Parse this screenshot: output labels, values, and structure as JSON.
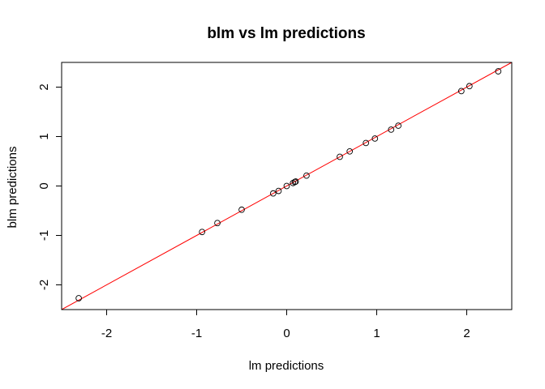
{
  "chart_data": {
    "type": "scatter",
    "title": "blm vs lm predictions",
    "xlabel": "lm predictions",
    "ylabel": "blm predictions",
    "xlim": [
      -2.5,
      2.5
    ],
    "ylim": [
      -2.5,
      2.5
    ],
    "x_ticks": [
      -2,
      -1,
      0,
      1,
      2
    ],
    "y_ticks": [
      -2,
      -1,
      0,
      1,
      2
    ],
    "x_tick_labels": [
      "-2",
      "-1",
      "0",
      "1",
      "2"
    ],
    "y_tick_labels": [
      "-2",
      "-1",
      "0",
      "1",
      "2"
    ],
    "grid": false,
    "points": [
      {
        "x": -2.31,
        "y": -2.27
      },
      {
        "x": -0.94,
        "y": -0.93
      },
      {
        "x": -0.77,
        "y": -0.75
      },
      {
        "x": -0.5,
        "y": -0.48
      },
      {
        "x": -0.15,
        "y": -0.15
      },
      {
        "x": -0.09,
        "y": -0.1
      },
      {
        "x": 0.0,
        "y": 0.0
      },
      {
        "x": 0.07,
        "y": 0.06
      },
      {
        "x": 0.09,
        "y": 0.08
      },
      {
        "x": 0.1,
        "y": 0.09
      },
      {
        "x": 0.22,
        "y": 0.21
      },
      {
        "x": 0.59,
        "y": 0.59
      },
      {
        "x": 0.7,
        "y": 0.7
      },
      {
        "x": 0.88,
        "y": 0.87
      },
      {
        "x": 0.98,
        "y": 0.96
      },
      {
        "x": 1.16,
        "y": 1.14
      },
      {
        "x": 1.24,
        "y": 1.22
      },
      {
        "x": 1.94,
        "y": 1.92
      },
      {
        "x": 2.03,
        "y": 2.02
      },
      {
        "x": 2.35,
        "y": 2.32
      }
    ],
    "reference_line": {
      "intercept": 0,
      "slope": 1,
      "color": "#ff0000"
    },
    "point_color": "#000000"
  }
}
